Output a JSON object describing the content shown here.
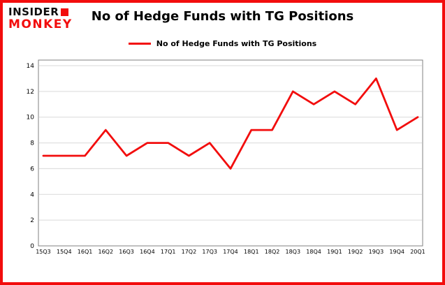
{
  "logo": {
    "line1": "INSIDER",
    "line2": "MONKEY"
  },
  "title": "No of Hedge Funds with TG Positions",
  "legend": {
    "label": "No of Hedge Funds with TG Positions"
  },
  "colors": {
    "line": "#f20d0d",
    "frame": "#f20d0d",
    "grid": "#d9d9d9",
    "axis": "#808080",
    "text": "#000000"
  },
  "chart_data": {
    "type": "line",
    "categories": [
      "15Q3",
      "15Q4",
      "16Q1",
      "16Q2",
      "16Q3",
      "16Q4",
      "17Q1",
      "17Q2",
      "17Q3",
      "17Q4",
      "18Q1",
      "18Q2",
      "18Q3",
      "18Q4",
      "19Q1",
      "19Q2",
      "19Q3",
      "19Q4",
      "20Q1"
    ],
    "values": [
      7,
      7,
      7,
      9,
      7,
      8,
      8,
      7,
      8,
      6,
      9,
      9,
      12,
      11,
      12,
      11,
      13,
      9,
      10
    ],
    "title": "No of Hedge Funds with TG Positions",
    "xlabel": "",
    "ylabel": "",
    "ylim": [
      0,
      14
    ],
    "ytick_step": 2,
    "grid": true,
    "legend_position": "top-center",
    "series_color": "#f20d0d"
  }
}
